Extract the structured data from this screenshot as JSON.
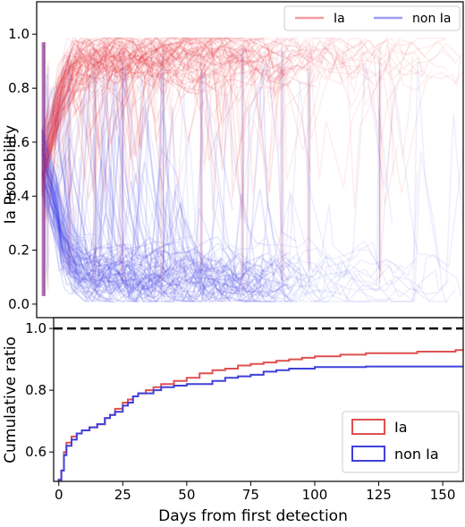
{
  "chart_data": [
    {
      "type": "line",
      "xlabel": "",
      "ylabel": "Ia Probability",
      "xlim": [
        -2,
        158
      ],
      "ylim": [
        -0.05,
        1.12
      ],
      "yticks": [
        0.0,
        0.2,
        0.4,
        0.6,
        0.8,
        1.0
      ],
      "ytick_labels": [
        "0.0",
        "0.2",
        "0.4",
        "0.6",
        "0.8",
        "1.0"
      ],
      "grid": false,
      "legend": "top-right",
      "series": [
        {
          "name": "Ia",
          "color": "#e8383d",
          "note_values": "many semi-transparent trajectories; representative values",
          "x": [
            0,
            2,
            5,
            10,
            15,
            20,
            30,
            40,
            50,
            60,
            75,
            90,
            100,
            125,
            155
          ],
          "values": [
            0.6,
            0.78,
            0.88,
            0.93,
            0.95,
            0.96,
            0.96,
            0.97,
            0.97,
            0.97,
            0.97,
            0.97,
            0.97,
            0.97,
            0.97
          ]
        },
        {
          "name": "non Ia",
          "color": "#3b3be8",
          "x": [
            0,
            2,
            5,
            10,
            15,
            20,
            30,
            40,
            50,
            60,
            75,
            90,
            100,
            125,
            155
          ],
          "values": [
            0.4,
            0.25,
            0.15,
            0.1,
            0.08,
            0.07,
            0.06,
            0.06,
            0.06,
            0.06,
            0.05,
            0.05,
            0.05,
            0.05,
            0.05
          ]
        }
      ]
    },
    {
      "type": "line",
      "xlabel": "Days from first detection",
      "ylabel": "Cumulative ratio",
      "xlim": [
        -2,
        158
      ],
      "ylim": [
        0.505,
        1.035
      ],
      "xticks": [
        0,
        25,
        50,
        75,
        100,
        125,
        150
      ],
      "xtick_labels": [
        "0",
        "25",
        "50",
        "75",
        "100",
        "125",
        "150"
      ],
      "yticks": [
        0.6,
        0.8,
        1.0
      ],
      "ytick_labels": [
        "0.6",
        "0.8",
        "1.0"
      ],
      "reference_line": 1.0,
      "grid": false,
      "legend": "bottom-right",
      "series": [
        {
          "name": "Ia",
          "color": "#e05050",
          "x": [
            0,
            1,
            2,
            3,
            5,
            7,
            9,
            12,
            15,
            18,
            20,
            22,
            25,
            27,
            29,
            31,
            34,
            37,
            40,
            45,
            50,
            55,
            60,
            65,
            70,
            75,
            80,
            85,
            90,
            95,
            100,
            110,
            120,
            125,
            140,
            155,
            158
          ],
          "values": [
            0.51,
            0.54,
            0.6,
            0.63,
            0.65,
            0.66,
            0.67,
            0.68,
            0.69,
            0.71,
            0.72,
            0.74,
            0.76,
            0.77,
            0.78,
            0.79,
            0.8,
            0.81,
            0.82,
            0.83,
            0.84,
            0.855,
            0.865,
            0.87,
            0.88,
            0.885,
            0.89,
            0.895,
            0.9,
            0.905,
            0.91,
            0.915,
            0.92,
            0.92,
            0.925,
            0.93,
            0.93
          ]
        },
        {
          "name": "non Ia",
          "color": "#4040d8",
          "x": [
            0,
            1,
            2,
            3,
            5,
            7,
            9,
            12,
            15,
            18,
            20,
            22,
            25,
            27,
            29,
            31,
            34,
            37,
            40,
            45,
            50,
            55,
            60,
            65,
            70,
            75,
            80,
            85,
            90,
            95,
            100,
            110,
            120,
            125,
            140,
            155,
            158
          ],
          "values": [
            0.51,
            0.54,
            0.59,
            0.62,
            0.64,
            0.66,
            0.67,
            0.68,
            0.69,
            0.71,
            0.72,
            0.73,
            0.75,
            0.76,
            0.78,
            0.79,
            0.79,
            0.8,
            0.81,
            0.815,
            0.82,
            0.82,
            0.83,
            0.84,
            0.845,
            0.85,
            0.86,
            0.865,
            0.87,
            0.87,
            0.875,
            0.875,
            0.877,
            0.877,
            0.877,
            0.877,
            0.877
          ]
        }
      ]
    }
  ]
}
